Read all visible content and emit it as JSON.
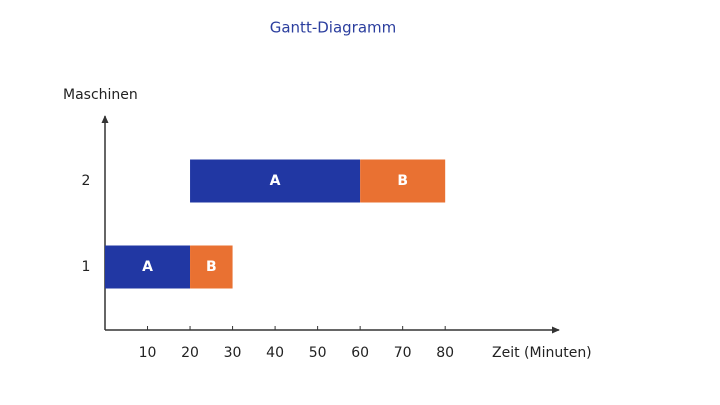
{
  "chart_data": {
    "type": "gantt",
    "title": "Gantt-Diagramm",
    "y_label": "Maschinen",
    "x_label": "Zeit (Minuten)",
    "xlim": [
      0,
      107
    ],
    "xticks": [
      10,
      20,
      30,
      40,
      50,
      60,
      70,
      80
    ],
    "rows": [
      {
        "label": "1",
        "tasks": [
          {
            "label": "A",
            "start": 0,
            "end": 20,
            "color": "#2137a3"
          },
          {
            "label": "B",
            "start": 20,
            "end": 30,
            "color": "#e97132"
          }
        ]
      },
      {
        "label": "2",
        "tasks": [
          {
            "label": "A",
            "start": 20,
            "end": 60,
            "color": "#2137a3"
          },
          {
            "label": "B",
            "start": 60,
            "end": 80,
            "color": "#e97132"
          }
        ]
      }
    ]
  }
}
